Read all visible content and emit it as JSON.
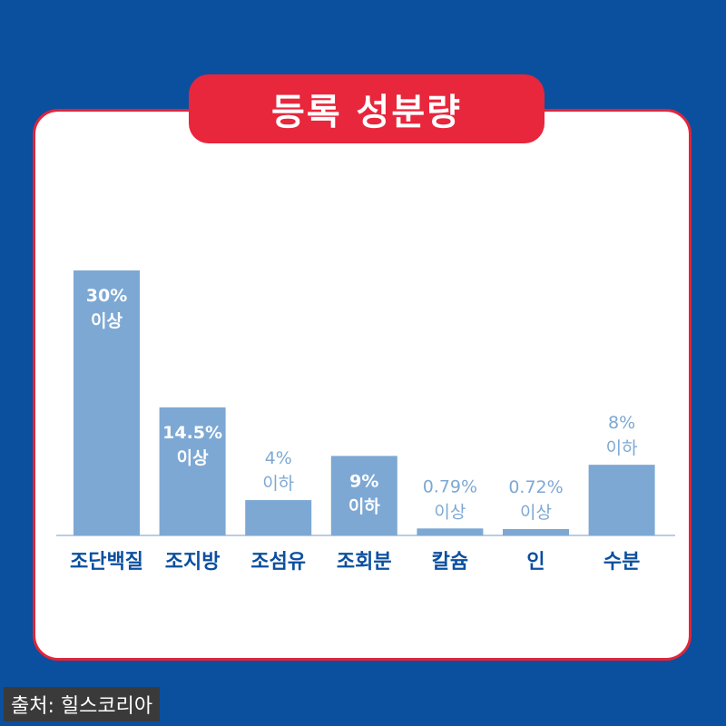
{
  "title": "등록 성분량",
  "source": "출처: 힐스코리아",
  "colors": {
    "background": "#0b4f9f",
    "card": "#ffffff",
    "title_fill": "#e8263c",
    "bar": "#7da8d4",
    "inside_label": "#ffffff",
    "outside_label": "#7da8d4",
    "category_label": "#0b4f9f"
  },
  "chart_data": {
    "type": "bar",
    "title": "등록 성분량",
    "categories": [
      "조단백질",
      "조지방",
      "조섬유",
      "조회분",
      "칼슘",
      "인",
      "수분"
    ],
    "values": [
      30,
      14.5,
      4,
      9,
      0.79,
      0.72,
      8
    ],
    "value_labels": [
      "30%",
      "14.5%",
      "4%",
      "9%",
      "0.79%",
      "0.72%",
      "8%"
    ],
    "qualifiers": [
      "이상",
      "이상",
      "이하",
      "이하",
      "이상",
      "이상",
      "이하"
    ],
    "ylim": [
      0,
      30
    ],
    "xlabel": "",
    "ylabel": "",
    "grid": false
  }
}
